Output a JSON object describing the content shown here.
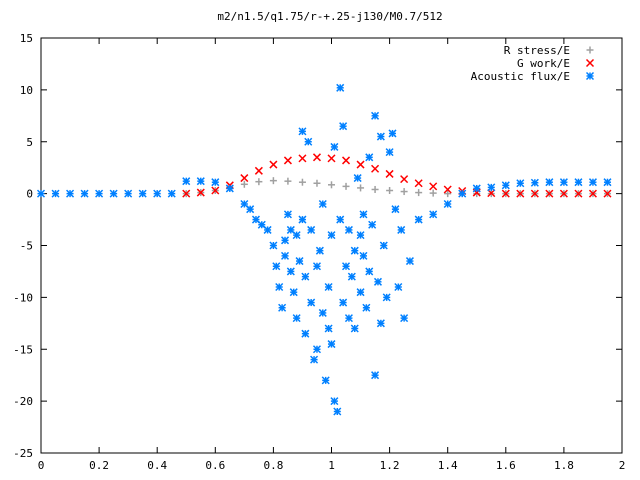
{
  "chart_data": {
    "type": "scatter",
    "title": "m2/n1.5/q1.75/r-+.25-j130/M0.7/512",
    "xlabel": "",
    "ylabel": "",
    "xlim": [
      0,
      2
    ],
    "ylim": [
      -25,
      15
    ],
    "x_ticks": [
      0,
      0.2,
      0.4,
      0.6,
      0.8,
      1,
      1.2,
      1.4,
      1.6,
      1.8,
      2
    ],
    "x_tick_labels": [
      "0",
      "0.2",
      "0.4",
      "0.6",
      "0.8",
      "1",
      "1.2",
      "1.4",
      "1.6",
      "1.8",
      "2"
    ],
    "y_ticks": [
      -25,
      -20,
      -15,
      -10,
      -5,
      0,
      5,
      10,
      15
    ],
    "y_tick_labels": [
      "-25",
      "-20",
      "-15",
      "-10",
      "-5",
      "0",
      "5",
      "10",
      "15"
    ],
    "grid": false,
    "legend_position": "top-right",
    "series": [
      {
        "name": "R stress/E",
        "marker": "+",
        "color": "#a0a0a0",
        "x": [
          0.5,
          0.55,
          0.6,
          0.65,
          0.7,
          0.75,
          0.8,
          0.85,
          0.9,
          0.95,
          1.0,
          1.05,
          1.1,
          1.15,
          1.2,
          1.25,
          1.3,
          1.35,
          1.4,
          1.45,
          1.5,
          1.55,
          1.6,
          1.65,
          1.7,
          1.75,
          1.8,
          1.85,
          1.9,
          1.95
        ],
        "y": [
          0.0,
          0.1,
          0.3,
          0.6,
          0.9,
          1.15,
          1.25,
          1.2,
          1.1,
          1.0,
          0.85,
          0.7,
          0.55,
          0.4,
          0.3,
          0.2,
          0.1,
          0.05,
          0.0,
          0.0,
          0.0,
          0.0,
          0.0,
          0.0,
          0.0,
          0.0,
          0.0,
          0.0,
          0.0,
          0.0
        ]
      },
      {
        "name": "G work/E",
        "marker": "x",
        "color": "#ff0000",
        "x": [
          0.5,
          0.55,
          0.6,
          0.65,
          0.7,
          0.75,
          0.8,
          0.85,
          0.9,
          0.95,
          1.0,
          1.05,
          1.1,
          1.15,
          1.2,
          1.25,
          1.3,
          1.35,
          1.4,
          1.45,
          1.5,
          1.55,
          1.6,
          1.65,
          1.7,
          1.75,
          1.8,
          1.85,
          1.9,
          1.95
        ],
        "y": [
          0.0,
          0.1,
          0.3,
          0.8,
          1.5,
          2.2,
          2.8,
          3.2,
          3.4,
          3.5,
          3.4,
          3.2,
          2.8,
          2.4,
          1.9,
          1.4,
          1.0,
          0.7,
          0.4,
          0.25,
          0.1,
          0.05,
          0.0,
          0.0,
          0.0,
          0.0,
          0.0,
          0.0,
          0.0,
          0.0
        ]
      },
      {
        "name": "Acoustic flux/E",
        "marker": "*",
        "color": "#0080ff",
        "x": [
          0.0,
          0.05,
          0.1,
          0.15,
          0.2,
          0.25,
          0.3,
          0.35,
          0.4,
          0.45,
          0.5,
          0.55,
          0.6,
          0.65,
          0.7,
          0.72,
          0.74,
          0.76,
          0.78,
          0.8,
          0.81,
          0.82,
          0.83,
          0.84,
          0.84,
          0.85,
          0.86,
          0.86,
          0.87,
          0.88,
          0.88,
          0.89,
          0.9,
          0.9,
          0.91,
          0.91,
          0.92,
          0.93,
          0.93,
          0.94,
          0.95,
          0.95,
          0.96,
          0.97,
          0.97,
          0.98,
          0.99,
          0.99,
          1.0,
          1.0,
          1.01,
          1.01,
          1.02,
          1.03,
          1.03,
          1.04,
          1.04,
          1.05,
          1.06,
          1.06,
          1.07,
          1.08,
          1.08,
          1.09,
          1.1,
          1.1,
          1.11,
          1.11,
          1.12,
          1.13,
          1.13,
          1.14,
          1.15,
          1.15,
          1.16,
          1.17,
          1.17,
          1.18,
          1.19,
          1.2,
          1.21,
          1.22,
          1.23,
          1.24,
          1.25,
          1.27,
          1.3,
          1.35,
          1.4,
          1.45,
          1.5,
          1.55,
          1.6,
          1.65,
          1.7,
          1.75,
          1.8,
          1.85,
          1.9,
          1.95
        ],
        "y": [
          0.0,
          0.0,
          0.0,
          0.0,
          0.0,
          0.0,
          0.0,
          0.0,
          0.0,
          0.0,
          1.2,
          1.2,
          1.1,
          0.5,
          -1.0,
          -1.5,
          -2.5,
          -3.0,
          -3.5,
          -5.0,
          -7.0,
          -9.0,
          -11.0,
          -6.0,
          -4.5,
          -2.0,
          -3.5,
          -7.5,
          -9.5,
          -4.0,
          -12.0,
          -6.5,
          -2.5,
          6.0,
          -8.0,
          -13.5,
          5.0,
          -10.5,
          -3.5,
          -16.0,
          -15.0,
          -7.0,
          -5.5,
          -11.5,
          -1.0,
          -18.0,
          -13.0,
          -9.0,
          -14.5,
          -4.0,
          4.5,
          -20.0,
          -21.0,
          10.2,
          -2.5,
          -10.5,
          6.5,
          -7.0,
          -12.0,
          -3.5,
          -8.0,
          -5.5,
          -13.0,
          1.5,
          -4.0,
          -9.5,
          -2.0,
          -6.0,
          -11.0,
          3.5,
          -7.5,
          -3.0,
          7.5,
          -17.5,
          -8.5,
          -12.5,
          5.5,
          -5.0,
          -10.0,
          4.0,
          5.8,
          -1.5,
          -9.0,
          -3.5,
          -12.0,
          -6.5,
          -2.5,
          -2.0,
          -1.0,
          0.0,
          0.5,
          0.6,
          0.8,
          1.0,
          1.05,
          1.1,
          1.1,
          1.1,
          1.1,
          1.1
        ]
      }
    ]
  }
}
